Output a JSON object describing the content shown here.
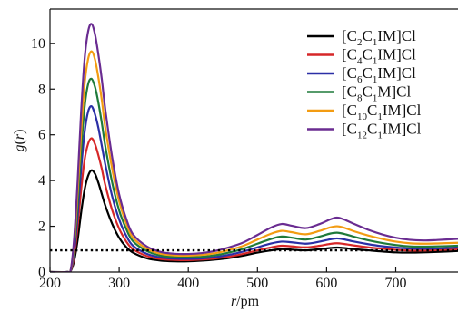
{
  "chart_data": {
    "type": "line",
    "xlabel": {
      "var": "r",
      "unit": "/pm"
    },
    "ylabel": {
      "var": "g",
      "arg": "r"
    },
    "xlim": [
      200,
      790
    ],
    "ylim": [
      0,
      11.5
    ],
    "xticks": [
      200,
      300,
      400,
      500,
      600,
      700
    ],
    "yticks": [
      0,
      2,
      4,
      6,
      8,
      10
    ],
    "grid": false,
    "legend_position": "top-right",
    "reference_line": {
      "y": 0.95,
      "style": "dotted",
      "color": "#000000"
    },
    "x": [
      200,
      225,
      230,
      235,
      240,
      245,
      250,
      255,
      260,
      265,
      270,
      275,
      280,
      290,
      300,
      310,
      320,
      340,
      360,
      380,
      400,
      420,
      440,
      460,
      480,
      500,
      520,
      535,
      550,
      570,
      590,
      605,
      615,
      625,
      640,
      660,
      680,
      700,
      720,
      740,
      760,
      790
    ],
    "series": [
      {
        "name": "[C2C1IM]Cl",
        "parts": [
          "[C",
          "2",
          "C",
          "1",
          "IM]Cl"
        ],
        "color": "#000000",
        "values": [
          0,
          0,
          0.05,
          0.5,
          1.4,
          2.6,
          3.6,
          4.2,
          4.45,
          4.3,
          3.9,
          3.4,
          2.9,
          2.1,
          1.5,
          1.1,
          0.85,
          0.6,
          0.5,
          0.47,
          0.47,
          0.5,
          0.55,
          0.62,
          0.72,
          0.85,
          0.95,
          1.0,
          0.98,
          0.95,
          1.0,
          1.05,
          1.07,
          1.05,
          1.0,
          0.95,
          0.9,
          0.86,
          0.85,
          0.86,
          0.88,
          0.92
        ]
      },
      {
        "name": "[C4C1IM]Cl",
        "parts": [
          "[C",
          "4",
          "C",
          "1",
          "IM]Cl"
        ],
        "color": "#d62728",
        "values": [
          0,
          0,
          0.06,
          0.7,
          2.0,
          3.6,
          4.9,
          5.6,
          5.85,
          5.6,
          5.1,
          4.5,
          3.8,
          2.7,
          1.9,
          1.35,
          1.0,
          0.7,
          0.57,
          0.53,
          0.52,
          0.55,
          0.6,
          0.68,
          0.8,
          0.95,
          1.08,
          1.15,
          1.12,
          1.08,
          1.15,
          1.23,
          1.26,
          1.23,
          1.16,
          1.08,
          1.02,
          0.97,
          0.94,
          0.94,
          0.96,
          1.0
        ]
      },
      {
        "name": "[C6C1IM]Cl",
        "parts": [
          "[C",
          "6",
          "C",
          "1",
          "IM]Cl"
        ],
        "color": "#2b2fa6",
        "values": [
          0,
          0,
          0.07,
          0.9,
          2.5,
          4.5,
          6.1,
          7.0,
          7.25,
          6.9,
          6.3,
          5.5,
          4.7,
          3.3,
          2.3,
          1.6,
          1.15,
          0.8,
          0.64,
          0.59,
          0.58,
          0.6,
          0.66,
          0.76,
          0.9,
          1.08,
          1.25,
          1.33,
          1.3,
          1.24,
          1.33,
          1.43,
          1.47,
          1.43,
          1.33,
          1.22,
          1.13,
          1.07,
          1.03,
          1.02,
          1.03,
          1.07
        ]
      },
      {
        "name": "[C8C1M]Cl",
        "parts": [
          "[C",
          "8",
          "C",
          "1",
          "M]Cl"
        ],
        "color": "#1f7a3a",
        "values": [
          0,
          0,
          0.08,
          1.1,
          3.0,
          5.3,
          7.2,
          8.2,
          8.45,
          8.1,
          7.4,
          6.5,
          5.5,
          3.9,
          2.7,
          1.9,
          1.35,
          0.92,
          0.72,
          0.66,
          0.65,
          0.67,
          0.74,
          0.86,
          1.02,
          1.24,
          1.45,
          1.55,
          1.5,
          1.42,
          1.55,
          1.68,
          1.72,
          1.67,
          1.54,
          1.39,
          1.27,
          1.18,
          1.12,
          1.11,
          1.12,
          1.15
        ]
      },
      {
        "name": "[C10C1IM]Cl",
        "parts": [
          "[C",
          "10",
          "C",
          "1",
          "IM]Cl"
        ],
        "color": "#f39c12",
        "values": [
          0,
          0,
          0.09,
          1.3,
          3.5,
          6.1,
          8.2,
          9.3,
          9.65,
          9.3,
          8.5,
          7.5,
          6.3,
          4.5,
          3.1,
          2.15,
          1.5,
          1.02,
          0.8,
          0.73,
          0.72,
          0.75,
          0.83,
          0.97,
          1.15,
          1.42,
          1.68,
          1.8,
          1.74,
          1.65,
          1.8,
          1.95,
          2.0,
          1.94,
          1.78,
          1.6,
          1.45,
          1.33,
          1.26,
          1.24,
          1.25,
          1.28
        ]
      },
      {
        "name": "[C12C1IM]Cl",
        "parts": [
          "[C",
          "12",
          "C",
          "1",
          "IM]Cl"
        ],
        "color": "#6a2c91",
        "values": [
          0,
          0,
          0.1,
          1.5,
          4.0,
          7.0,
          9.3,
          10.5,
          10.85,
          10.4,
          9.5,
          8.4,
          7.1,
          5.0,
          3.4,
          2.35,
          1.65,
          1.12,
          0.88,
          0.8,
          0.79,
          0.83,
          0.93,
          1.09,
          1.3,
          1.62,
          1.95,
          2.1,
          2.02,
          1.92,
          2.1,
          2.3,
          2.38,
          2.3,
          2.1,
          1.85,
          1.65,
          1.5,
          1.41,
          1.38,
          1.4,
          1.45
        ]
      }
    ]
  }
}
